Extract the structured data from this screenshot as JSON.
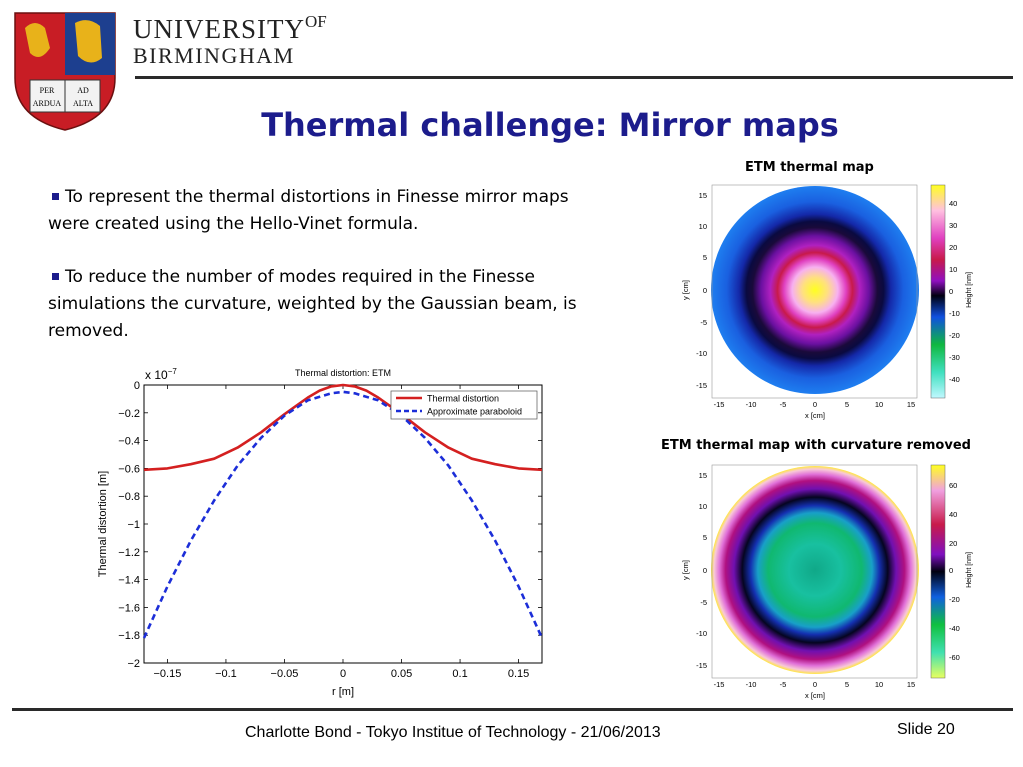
{
  "header": {
    "university_line1": "UNIVERSITY",
    "university_of": "OF",
    "university_line2": "BIRMINGHAM",
    "crest_text": [
      "PER",
      "AD",
      "ARDUA",
      "ALTA"
    ]
  },
  "slide": {
    "title": "Thermal challenge: Mirror maps",
    "bullets": [
      "To represent the thermal distortions in Finesse mirror maps were created using the Hello-Vinet formula.",
      "To reduce the number of modes required in the Finesse simulations the curvature, weighted by the Gaussian beam, is removed."
    ]
  },
  "maps": [
    {
      "title": "ETM thermal map",
      "xlabel": "x [cm]",
      "ylabel": "y [cm]",
      "colorbar_label": "Height [nm]",
      "ticks": [
        "15",
        "10",
        "5",
        "0",
        "-5",
        "-10",
        "-15"
      ],
      "xticks": [
        "-15",
        "-10",
        "-5",
        "0",
        "5",
        "10",
        "15"
      ],
      "cbar_ticks": [
        "40",
        "30",
        "20",
        "10",
        "0",
        "-10",
        "-20",
        "-30",
        "-40"
      ]
    },
    {
      "title": "ETM thermal map with curvature removed",
      "xlabel": "x [cm]",
      "ylabel": "y [cm]",
      "colorbar_label": "Height [nm]",
      "ticks": [
        "15",
        "10",
        "5",
        "0",
        "-5",
        "-10",
        "-15"
      ],
      "xticks": [
        "-15",
        "-10",
        "-5",
        "0",
        "5",
        "10",
        "15"
      ],
      "cbar_ticks": [
        "60",
        "40",
        "20",
        "0",
        "-20",
        "-40",
        "-60"
      ]
    }
  ],
  "chart_data": {
    "type": "line",
    "title": "Thermal distortion: ETM",
    "xlabel": "r [m]",
    "ylabel": "Thermal distortion [m]",
    "yscale_label": "x 10",
    "yscale_exp": "−7",
    "xlim": [
      -0.17,
      0.17
    ],
    "ylim": [
      -2,
      0
    ],
    "xticks": [
      -0.15,
      -0.1,
      -0.05,
      0,
      0.05,
      0.1,
      0.15
    ],
    "xtick_labels": [
      "−0.15",
      "−0.1",
      "−0.05",
      "0",
      "0.05",
      "0.1",
      "0.15"
    ],
    "yticks": [
      0,
      -0.2,
      -0.4,
      -0.6,
      -0.8,
      -1,
      -1.2,
      -1.4,
      -1.6,
      -1.8,
      -2
    ],
    "ytick_labels": [
      "0",
      "−0.2",
      "−0.4",
      "−0.6",
      "−0.8",
      "−1",
      "−1.2",
      "−1.4",
      "−1.6",
      "−1.8",
      "−2"
    ],
    "legend_position": "top-right",
    "series": [
      {
        "name": "Thermal distortion",
        "color": "#d42020",
        "style": "solid",
        "x": [
          -0.17,
          -0.15,
          -0.13,
          -0.11,
          -0.09,
          -0.07,
          -0.05,
          -0.04,
          -0.03,
          -0.02,
          -0.01,
          0,
          0.01,
          0.02,
          0.03,
          0.04,
          0.05,
          0.07,
          0.09,
          0.11,
          0.13,
          0.15,
          0.17
        ],
        "y": [
          -0.61,
          -0.6,
          -0.57,
          -0.53,
          -0.45,
          -0.34,
          -0.21,
          -0.15,
          -0.09,
          -0.04,
          -0.01,
          0,
          -0.01,
          -0.04,
          -0.09,
          -0.15,
          -0.21,
          -0.34,
          -0.45,
          -0.53,
          -0.57,
          -0.6,
          -0.61
        ]
      },
      {
        "name": "Approximate paraboloid",
        "color": "#1c2ed8",
        "style": "dashed",
        "x": [
          -0.17,
          -0.15,
          -0.13,
          -0.11,
          -0.09,
          -0.07,
          -0.05,
          -0.03,
          -0.01,
          0,
          0.01,
          0.03,
          0.05,
          0.07,
          0.09,
          0.11,
          0.13,
          0.15,
          0.17
        ],
        "y": [
          -1.82,
          -1.45,
          -1.12,
          -0.83,
          -0.58,
          -0.38,
          -0.22,
          -0.11,
          -0.06,
          -0.05,
          -0.06,
          -0.11,
          -0.22,
          -0.38,
          -0.58,
          -0.83,
          -1.12,
          -1.45,
          -1.82
        ]
      }
    ]
  },
  "footer": {
    "text": "Charlotte Bond - Tokyo Institue of Technology - 21/06/2013",
    "slide_label": "Slide 20"
  }
}
